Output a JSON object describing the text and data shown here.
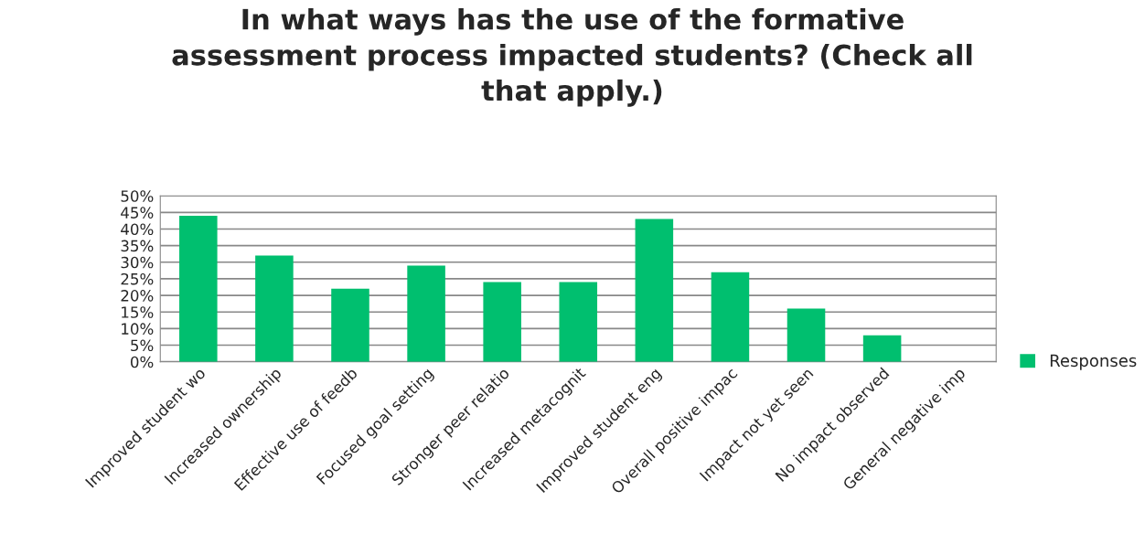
{
  "chart_data": {
    "type": "bar",
    "title": "In what ways has the use of the formative\nassessment process impacted students? (Check all\nthat apply.)",
    "categories": [
      "Improved student wo",
      "Increased ownership",
      "Effective use of feedb",
      "Focused goal setting",
      "Stronger peer relatio",
      "Increased metacognit",
      "Improved student eng",
      "Overall positive impac",
      "Impact not yet seen",
      "No impact observed",
      "General negative imp"
    ],
    "series": [
      {
        "name": "Responses",
        "color": "#00bf6f",
        "values": [
          44,
          32,
          22,
          29,
          24,
          24,
          43,
          27,
          16,
          8,
          0
        ]
      }
    ],
    "ylim": [
      0,
      50
    ],
    "yticks": [
      {
        "value": 0,
        "label": "0%"
      },
      {
        "value": 5,
        "label": "5%"
      },
      {
        "value": 10,
        "label": "10%"
      },
      {
        "value": 15,
        "label": "15%"
      },
      {
        "value": 20,
        "label": "20%"
      },
      {
        "value": 25,
        "label": "25%"
      },
      {
        "value": 30,
        "label": "30%"
      },
      {
        "value": 35,
        "label": "35%"
      },
      {
        "value": 40,
        "label": "40%"
      },
      {
        "value": 45,
        "label": "45%"
      },
      {
        "value": 50,
        "label": "50%"
      }
    ],
    "grid": "y",
    "legend": "right"
  }
}
